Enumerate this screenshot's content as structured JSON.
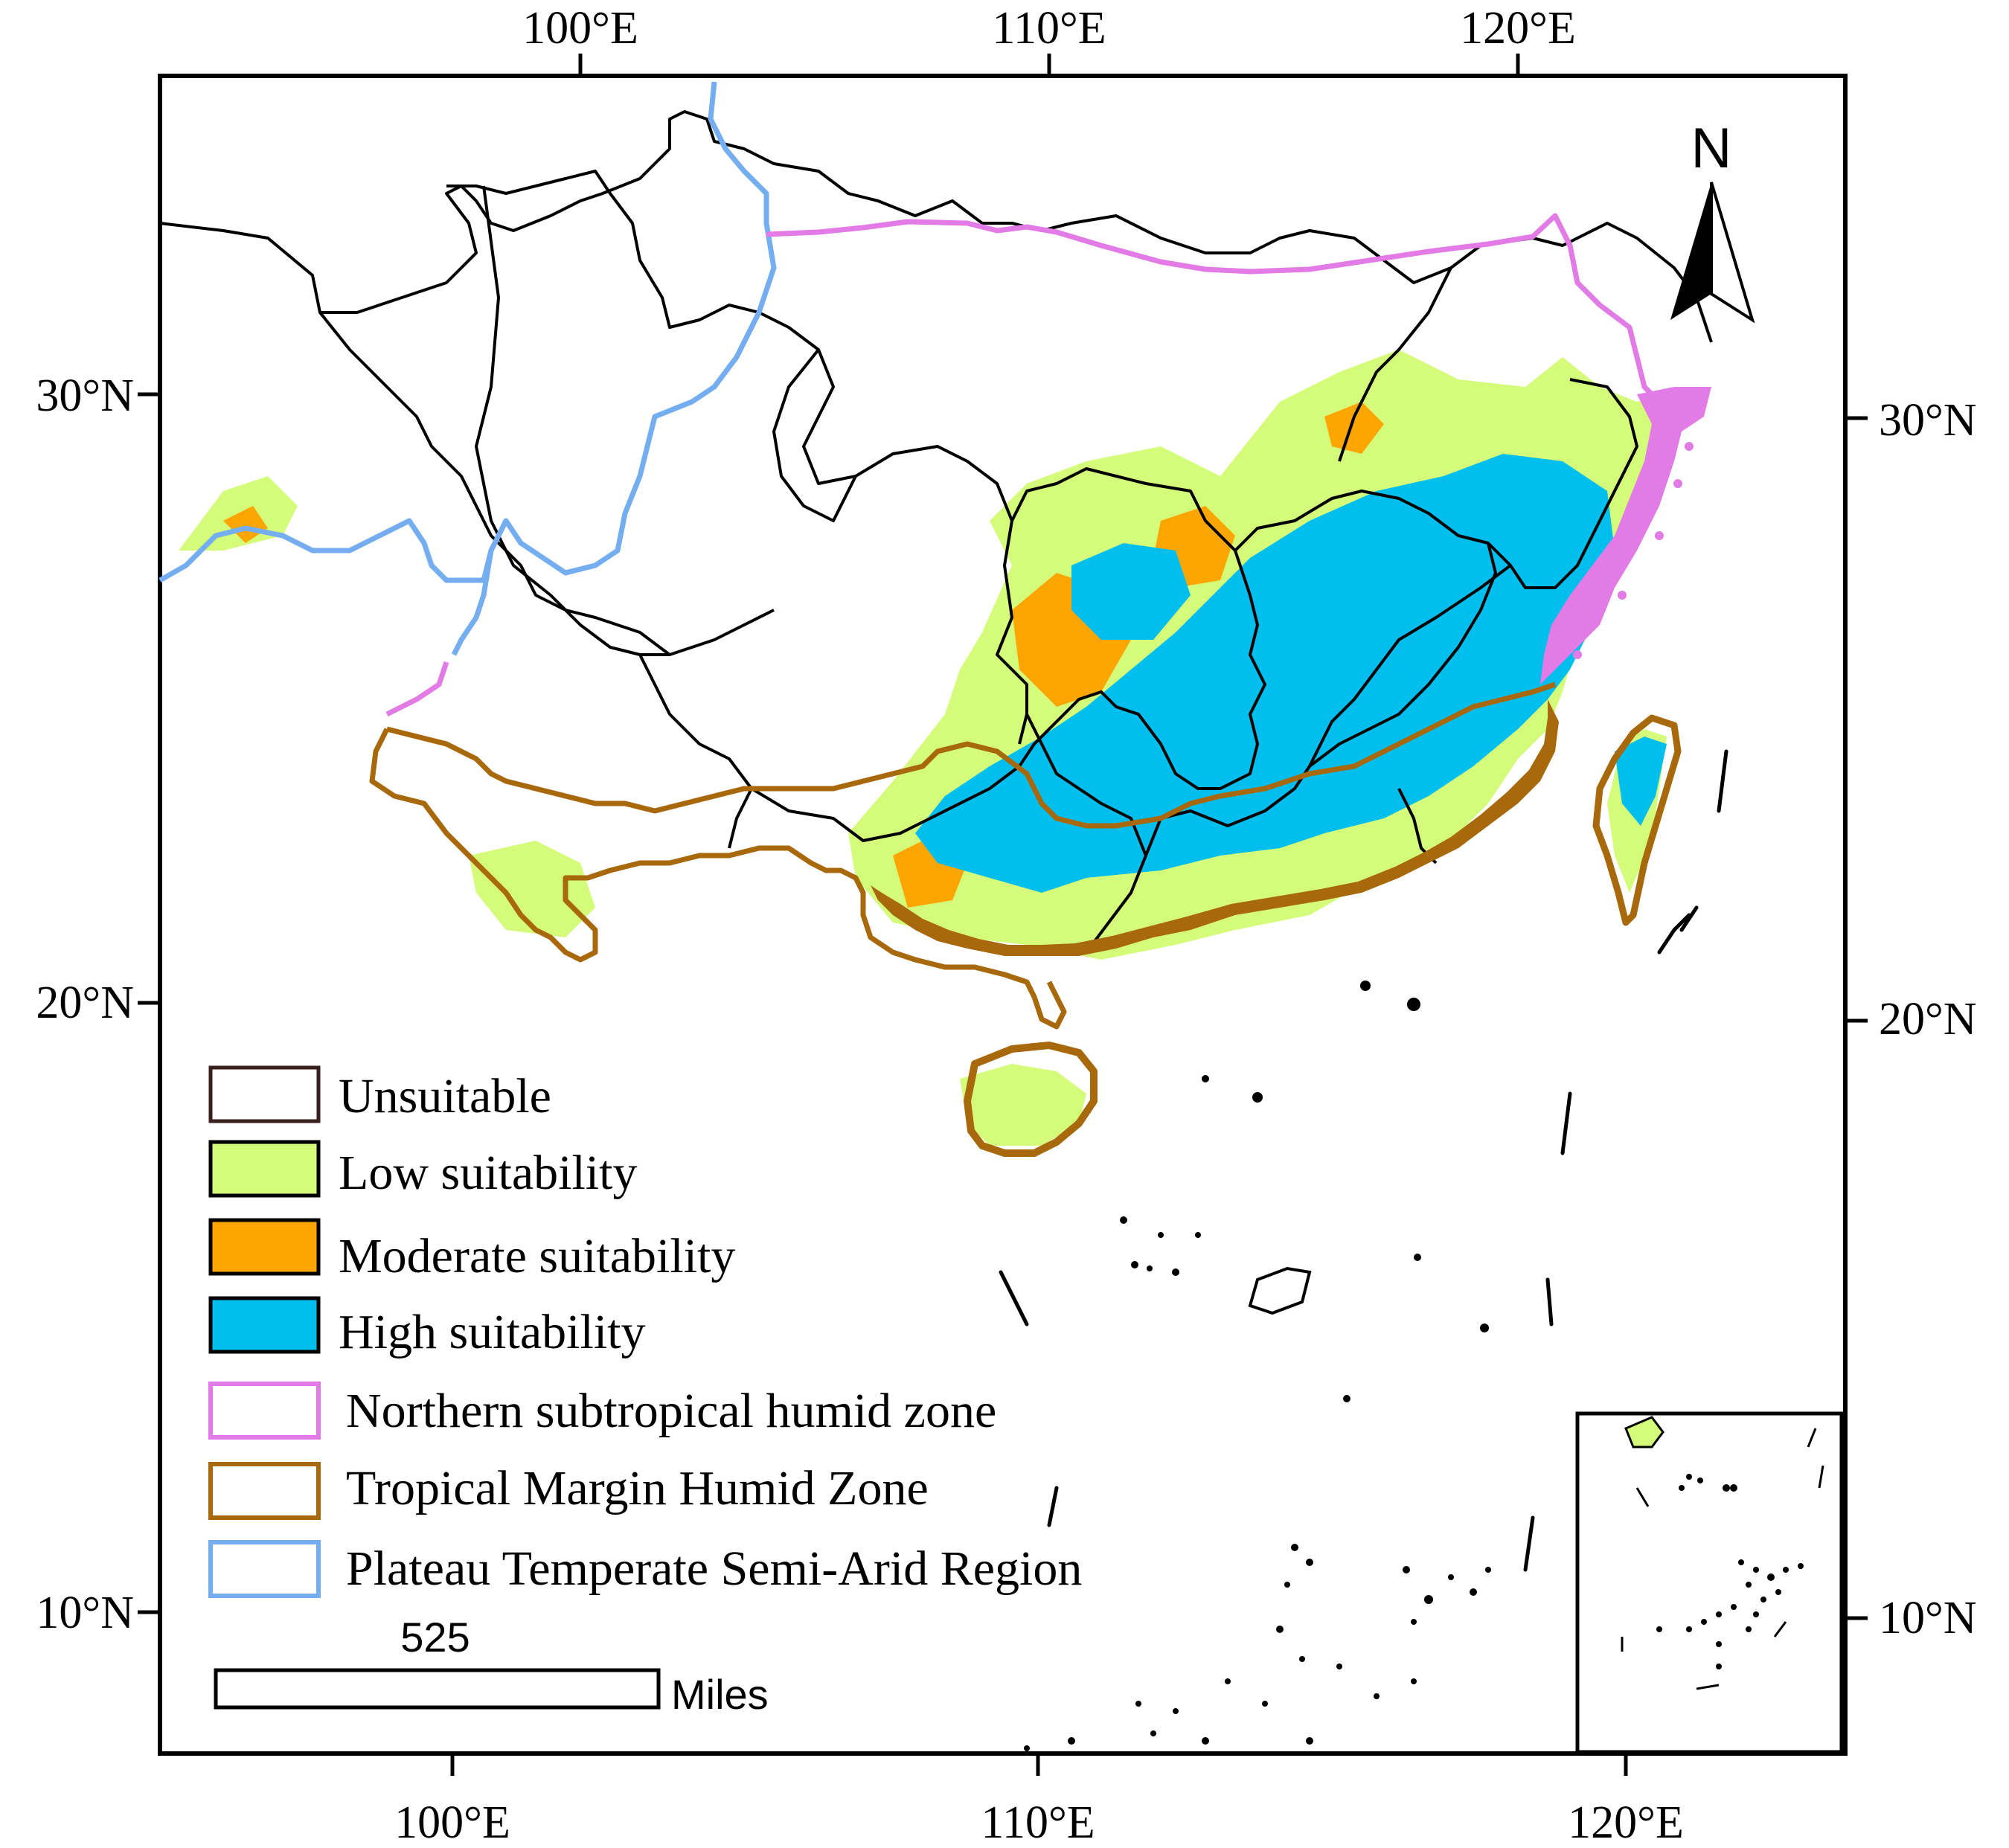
{
  "axes": {
    "top_lon": [
      "100°E",
      "110°E",
      "120°E"
    ],
    "bottom_lon": [
      "100°E",
      "110°E",
      "120°E"
    ],
    "left_lat": [
      "30°N",
      "20°N",
      "10°N"
    ],
    "right_lat": [
      "30°N",
      "20°N",
      "10°N"
    ]
  },
  "north_arrow": {
    "label": "N"
  },
  "legend": {
    "items": [
      {
        "label": "Unsuitable",
        "fill": "#ffffff",
        "stroke": "#3b1e1e"
      },
      {
        "label": "Low suitability",
        "fill": "#d4fb79",
        "stroke": "#000000"
      },
      {
        "label": "Moderate suitability",
        "fill": "#fda500",
        "stroke": "#000000"
      },
      {
        "label": "High suitability",
        "fill": "#00bfee",
        "stroke": "#000000"
      },
      {
        "label": "Northern subtropical humid zone",
        "fill": "#ffffff",
        "stroke": "#e27be6"
      },
      {
        "label": "Tropical Margin Humid Zone",
        "fill": "#ffffff",
        "stroke": "#a8690c"
      },
      {
        "label": "Plateau Temperate Semi-Arid Region",
        "fill": "#ffffff",
        "stroke": "#74aef1"
      }
    ]
  },
  "scale_bar": {
    "value": "525",
    "unit": "Miles"
  },
  "colors": {
    "low": "#d4fb79",
    "moderate": "#fda500",
    "high": "#00bfee",
    "northern_zone": "#e27be6",
    "tropical_zone": "#a8690c",
    "plateau_zone": "#74aef1"
  }
}
